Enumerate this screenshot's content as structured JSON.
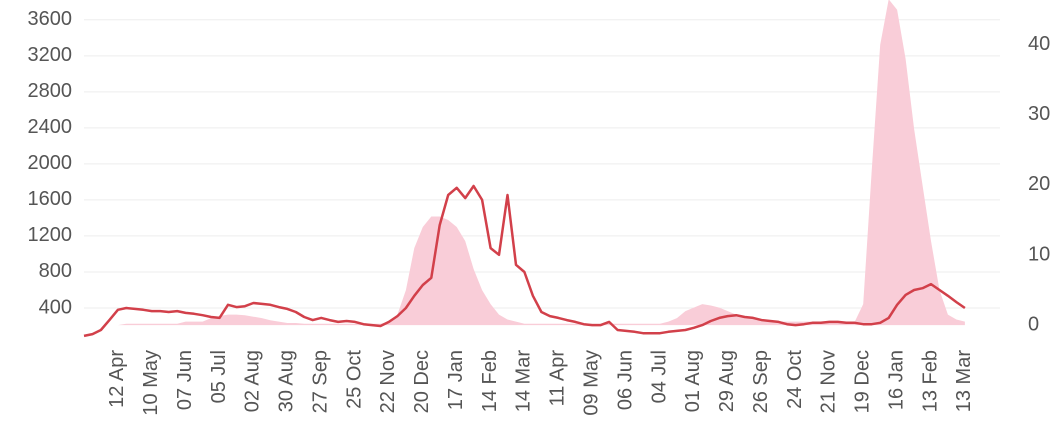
{
  "chart_data": {
    "type": "line",
    "categories": [
      null,
      null,
      null,
      null,
      "12 Apr",
      null,
      null,
      null,
      "10 May",
      null,
      null,
      null,
      "07 Jun",
      null,
      null,
      null,
      "05 Jul",
      null,
      null,
      null,
      "02 Aug",
      null,
      null,
      null,
      "30 Aug",
      null,
      null,
      null,
      "27 Sep",
      null,
      null,
      null,
      "25 Oct",
      null,
      null,
      null,
      "22 Nov",
      null,
      null,
      null,
      "20 Dec",
      null,
      null,
      null,
      "17 Jan",
      null,
      null,
      null,
      "14 Feb",
      null,
      null,
      null,
      "14 Mar",
      null,
      null,
      null,
      "11 Apr",
      null,
      null,
      null,
      "09 May",
      null,
      null,
      null,
      "06 Jun",
      null,
      null,
      null,
      "04 Jul",
      null,
      null,
      null,
      "01 Aug",
      null,
      null,
      null,
      "29 Aug",
      null,
      null,
      null,
      "26 Sep",
      null,
      null,
      null,
      "24 Oct",
      null,
      null,
      null,
      "21 Nov",
      null,
      null,
      null,
      "19 Dec",
      null,
      null,
      null,
      "16 Jan",
      null,
      null,
      null,
      "13 Feb",
      null,
      null,
      null,
      "13 Mar"
    ],
    "series": [
      {
        "type": "area",
        "axis": "y2",
        "color": "#f9cdd8",
        "values": [
          0,
          0,
          0,
          0,
          0,
          0.2,
          0.2,
          0.2,
          0.2,
          0.2,
          0.2,
          0.2,
          0.5,
          0.5,
          0.5,
          1,
          1.3,
          1.5,
          1.5,
          1.4,
          1.2,
          1,
          0.7,
          0.5,
          0.3,
          0.3,
          0.2,
          0.2,
          0.2,
          0.2,
          0.2,
          0.2,
          0.2,
          0.2,
          0.2,
          0.2,
          0.5,
          1.5,
          5,
          11,
          14,
          15.5,
          15.5,
          15,
          14,
          12,
          8,
          5,
          3,
          1.5,
          0.8,
          0.5,
          0.2,
          0.2,
          0.2,
          0.2,
          0.2,
          0.2,
          0.2,
          0.2,
          0.2,
          0.2,
          0.2,
          0.2,
          0.2,
          0.2,
          0.2,
          0.2,
          0.2,
          0.5,
          1,
          2,
          2.5,
          3,
          2.8,
          2.5,
          2,
          1.5,
          1.2,
          1,
          0.5,
          0.5,
          0.5,
          0.5,
          0.5,
          0.5,
          0.5,
          0.5,
          0.5,
          0.5,
          0.5,
          0.5,
          3,
          22,
          40,
          46.5,
          45,
          38,
          28,
          20,
          12,
          5,
          1.5,
          0.8,
          0.5
        ]
      },
      {
        "type": "line",
        "color": "#d2404a",
        "values": [
          90,
          110,
          155,
          265,
          380,
          400,
          390,
          380,
          365,
          365,
          355,
          365,
          345,
          335,
          320,
          300,
          290,
          435,
          410,
          420,
          455,
          445,
          435,
          410,
          390,
          355,
          300,
          265,
          290,
          265,
          245,
          255,
          245,
          220,
          210,
          200,
          245,
          310,
          400,
          535,
          655,
          735,
          1320,
          1655,
          1735,
          1620,
          1755,
          1600,
          1065,
          990,
          1655,
          880,
          800,
          535,
          355,
          310,
          290,
          265,
          245,
          220,
          210,
          210,
          245,
          155,
          145,
          135,
          120,
          120,
          120,
          135,
          145,
          155,
          180,
          210,
          255,
          290,
          310,
          320,
          300,
          290,
          265,
          255,
          245,
          220,
          210,
          220,
          235,
          235,
          245,
          245,
          235,
          235,
          220,
          220,
          235,
          290,
          435,
          545,
          600,
          620,
          665,
          600,
          535,
          465,
          400
        ]
      }
    ],
    "ylim": [
      0,
      3820
    ],
    "yticks": [
      400,
      800,
      1200,
      1600,
      2000,
      2400,
      2800,
      3200,
      3600
    ],
    "y2lim": [
      -2.7,
      46.4
    ],
    "y2ticks": [
      0,
      10,
      20,
      30,
      40
    ],
    "grid": true
  }
}
